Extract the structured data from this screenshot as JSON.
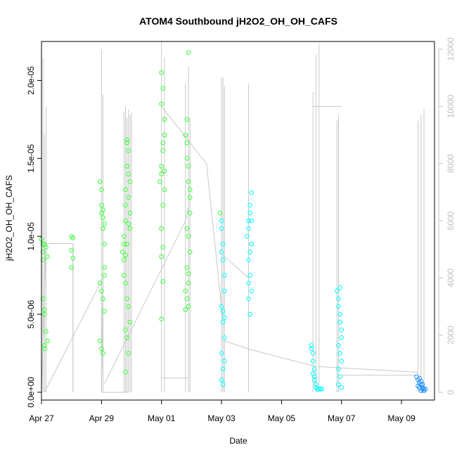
{
  "chart_data": {
    "type": "scatter",
    "title": "ATOM4 Southbound jH2O2_OH_OH_CAFS",
    "xlabel": "Date",
    "ylabel": "jH2O2_OH_OH_CAFS",
    "x_unit": "days",
    "xlim": [
      0.0,
      13.1
    ],
    "ylim": [
      -5e-07,
      2.25e-05
    ],
    "y2lim": [
      -270,
      12270
    ],
    "x_ticks": [
      {
        "value": 0,
        "label": "Apr 27"
      },
      {
        "value": 2,
        "label": "Apr 29"
      },
      {
        "value": 4,
        "label": "May 01"
      },
      {
        "value": 6,
        "label": "May 03"
      },
      {
        "value": 8,
        "label": "May 05"
      },
      {
        "value": 10,
        "label": "May 07"
      },
      {
        "value": 12,
        "label": "May 09"
      }
    ],
    "y_ticks": [
      {
        "value": 0,
        "label": "0.0e+00"
      },
      {
        "value": 5e-06,
        "label": "5.0e-06"
      },
      {
        "value": 1e-05,
        "label": "1.0e-05"
      },
      {
        "value": 1.5e-05,
        "label": "1.5e-05"
      },
      {
        "value": 2e-05,
        "label": "2.0e-05"
      }
    ],
    "y2_ticks": [
      {
        "value": 0,
        "label": "0"
      },
      {
        "value": 2000,
        "label": "2000"
      },
      {
        "value": 4000,
        "label": "4000"
      },
      {
        "value": 6000,
        "label": "6000"
      },
      {
        "value": 8000,
        "label": "8000"
      },
      {
        "value": 10000,
        "label": "10000"
      },
      {
        "value": 12000,
        "label": "12000"
      }
    ],
    "grid": false,
    "legend": "none",
    "colors": {
      "marker_green": "#33ff33",
      "marker_cyan": "#00ffff",
      "marker_blue": "#1e90ff",
      "altitude_line": "#c8c8c8"
    },
    "series": [
      {
        "values_x": [
          0.0,
          0.05,
          0.05,
          0.05,
          0.05,
          0.1,
          0.1,
          0.1,
          0.1,
          0.1,
          0.15,
          0.15,
          0.2,
          0.2,
          1.0,
          1.0,
          1.05,
          1.05,
          1.0
        ],
        "values_y": [
          9.8e-06,
          9.5e-06,
          9e-06,
          8.5e-06,
          6e-06,
          5.3e-06,
          5e-06,
          3e-06,
          2.8e-06,
          9.5e-06,
          9.3e-06,
          3.9e-06,
          8.7e-06,
          3.3e-06,
          1e-05,
          9.1e-06,
          9.9e-06,
          8.6e-06,
          8e-06
        ]
      },
      {
        "values_x": [
          1.95,
          2.0,
          2.0,
          2.0,
          2.05,
          2.05,
          2.1,
          2.1,
          2.1,
          1.95,
          2.0,
          2.05,
          2.1,
          1.95,
          2.0,
          2.05,
          2.05,
          2.1
        ],
        "values_y": [
          1.35e-05,
          1.3e-05,
          1.2e-05,
          1.15e-05,
          1.12e-05,
          1.05e-05,
          9.5e-06,
          8e-06,
          7.5e-06,
          7e-06,
          6.5e-06,
          6e-06,
          5.2e-06,
          3.3e-06,
          2.8e-06,
          2.5e-06,
          1.17e-05,
          1.08e-05
        ]
      },
      {
        "values_x": [
          2.7,
          2.75,
          2.75,
          2.8,
          2.8,
          2.8,
          2.85,
          2.85,
          2.9,
          2.9,
          2.9,
          2.95,
          2.95,
          2.75,
          2.8,
          2.85,
          2.9,
          2.95,
          2.8,
          2.85,
          2.9,
          2.8,
          2.85,
          2.9,
          2.95,
          2.75,
          2.8,
          2.85
        ],
        "values_y": [
          9e-06,
          9.5e-06,
          1e-05,
          1.1e-05,
          1.2e-05,
          1.3e-05,
          1.45e-05,
          1.6e-05,
          1.55e-05,
          1.4e-05,
          1.25e-05,
          1.15e-05,
          1.05e-05,
          7.5e-06,
          7e-06,
          6e-06,
          5.5e-06,
          4.5e-06,
          4e-06,
          3.5e-06,
          2.5e-06,
          1.3e-06,
          9.5e-06,
          1.08e-05,
          1.35e-05,
          8.5e-06,
          8.8e-06,
          1.62e-05
        ]
      },
      {
        "values_x": [
          3.95,
          4.0,
          4.0,
          4.05,
          4.05,
          4.1,
          4.1,
          4.0,
          4.0,
          4.05,
          4.1,
          4.0,
          4.05,
          4.0,
          4.05,
          4.0,
          4.05,
          4.1
        ],
        "values_y": [
          1.35e-05,
          1.4e-05,
          1.45e-05,
          1.55e-05,
          1.6e-05,
          1.65e-05,
          1.75e-05,
          1.85e-05,
          2.05e-05,
          1.95e-05,
          1.3e-05,
          1.05e-05,
          9.3e-06,
          8.7e-06,
          7.1e-06,
          4.7e-06,
          1.2e-05,
          1.42e-05
        ]
      },
      {
        "values_x": [
          4.8,
          4.85,
          4.85,
          4.9,
          4.9,
          4.95,
          4.95,
          4.85,
          4.9,
          4.95,
          4.85,
          4.9,
          4.8,
          4.85,
          4.9,
          4.8,
          4.85,
          4.9,
          4.95,
          4.9
        ],
        "values_y": [
          1.65e-05,
          1.6e-05,
          1.5e-05,
          1.45e-05,
          1.35e-05,
          1.25e-05,
          1.15e-05,
          1.05e-05,
          1e-05,
          9e-06,
          8e-06,
          7e-06,
          6.5e-06,
          6e-06,
          5.5e-06,
          5.3e-06,
          1.75e-05,
          2.18e-05,
          1.3e-05,
          7.6e-06
        ]
      },
      {
        "values_x": [
          5.95,
          6.0,
          6.0,
          6.05,
          6.05,
          6.1,
          6.1,
          6.0,
          6.05,
          6.1,
          6.0,
          6.05,
          6.0,
          6.05,
          6.1,
          6.0,
          6.05,
          6.1
        ],
        "values_y": [
          1.15e-05,
          1.1e-05,
          1.05e-05,
          9.5e-06,
          8.5e-06,
          7.5e-06,
          6.5e-06,
          5.5e-06,
          4.5e-06,
          3.5e-06,
          2.5e-06,
          1.5e-06,
          8e-07,
          5e-07,
          2e-06,
          9e-06,
          5.2e-06,
          4.8e-06
        ]
      },
      {
        "values_x": [
          6.85,
          6.9,
          6.9,
          6.95,
          6.95,
          7.0,
          7.0,
          6.9,
          6.95,
          7.0,
          6.9,
          6.95,
          7.0,
          6.95,
          6.9
        ],
        "values_y": [
          1e-05,
          1.05e-05,
          1.1e-05,
          1.15e-05,
          1.2e-05,
          1.1e-05,
          9.5e-06,
          8.5e-06,
          7.5e-06,
          6.5e-06,
          6e-06,
          5e-06,
          1.28e-05,
          9e-06,
          7e-06
        ]
      },
      {
        "values_x": [
          9.0,
          9.05,
          9.05,
          9.1,
          9.1,
          9.15,
          9.2,
          9.25,
          9.3,
          9.35,
          9.1,
          9.05,
          9.0,
          9.15
        ],
        "values_y": [
          3e-06,
          2.5e-06,
          2e-06,
          1.5e-06,
          1e-06,
          5e-07,
          2e-07,
          2e-07,
          2e-07,
          2e-07,
          8e-07,
          1.2e-06,
          2.8e-06,
          3e-07
        ]
      },
      {
        "values_x": [
          9.85,
          9.9,
          9.9,
          9.95,
          9.95,
          10.0,
          10.0,
          9.9,
          9.95,
          10.0,
          9.9,
          9.95,
          9.9,
          9.95,
          10.0
        ],
        "values_y": [
          6.5e-06,
          6e-06,
          5.5e-06,
          5e-06,
          4.5e-06,
          4e-06,
          3.5e-06,
          3e-06,
          2.5e-06,
          2e-06,
          1.5e-06,
          1e-06,
          5e-07,
          6.7e-06,
          3e-07
        ]
      },
      {
        "values_x": [
          12.5,
          12.55,
          12.6,
          12.65,
          12.7,
          12.75,
          12.8,
          12.55,
          12.6,
          12.65,
          12.7,
          12.6,
          12.65,
          12.7,
          12.75
        ],
        "values_y": [
          1e-06,
          8e-07,
          6e-07,
          5e-07,
          3e-07,
          2e-07,
          2e-07,
          4e-07,
          9e-07,
          7e-07,
          2e-07,
          3e-07,
          1e-07,
          5e-07,
          1e-07
        ]
      }
    ],
    "altitude": {
      "spikes": [
        {
          "x": 0.05,
          "alt": 11700
        },
        {
          "x": 0.1,
          "alt": 9000
        },
        {
          "x": 0.15,
          "alt": 10000
        },
        {
          "x": 1.05,
          "alt": 5200
        },
        {
          "x": 2.0,
          "alt": 12000
        },
        {
          "x": 2.05,
          "alt": 10400
        },
        {
          "x": 2.75,
          "alt": 9800
        },
        {
          "x": 2.8,
          "alt": 10000
        },
        {
          "x": 2.85,
          "alt": 9600
        },
        {
          "x": 2.9,
          "alt": 9900
        },
        {
          "x": 2.95,
          "alt": 9700
        },
        {
          "x": 3.0,
          "alt": 9800
        },
        {
          "x": 4.0,
          "alt": 12300
        },
        {
          "x": 4.1,
          "alt": 11700
        },
        {
          "x": 4.8,
          "alt": 10800
        },
        {
          "x": 4.9,
          "alt": 11400
        },
        {
          "x": 4.95,
          "alt": 9600
        },
        {
          "x": 6.0,
          "alt": 11000
        },
        {
          "x": 6.05,
          "alt": 11000
        },
        {
          "x": 6.1,
          "alt": 10700
        },
        {
          "x": 6.9,
          "alt": 10800
        },
        {
          "x": 9.05,
          "alt": 10500
        },
        {
          "x": 9.15,
          "alt": 11800
        },
        {
          "x": 9.25,
          "alt": 12200
        },
        {
          "x": 9.85,
          "alt": 9500
        },
        {
          "x": 9.9,
          "alt": 9700
        },
        {
          "x": 12.55,
          "alt": 9500
        },
        {
          "x": 12.65,
          "alt": 9700
        },
        {
          "x": 12.75,
          "alt": 9900
        }
      ],
      "transits": [
        {
          "x": [
            0.0,
            0.15,
            1.05,
            1.05
          ],
          "alt": [
            0,
            5200,
            5200,
            0
          ]
        },
        {
          "x": [
            0.1,
            2.05,
            2.0
          ],
          "alt": [
            0,
            4000,
            0
          ]
        },
        {
          "x": [
            2.0,
            2.9
          ],
          "alt": [
            0,
            0
          ]
        },
        {
          "x": [
            2.1,
            4.8,
            4.9
          ],
          "alt": [
            300,
            6000,
            6500
          ]
        },
        {
          "x": [
            4.0,
            4.9
          ],
          "alt": [
            500,
            500
          ]
        },
        {
          "x": [
            4.0,
            5.5,
            6.05
          ],
          "alt": [
            10000,
            8000,
            2500
          ]
        },
        {
          "x": [
            6.05,
            6.9
          ],
          "alt": [
            4800,
            4000
          ]
        },
        {
          "x": [
            6.1,
            6.95
          ],
          "alt": [
            1800,
            1500
          ]
        },
        {
          "x": [
            6.95,
            9.15
          ],
          "alt": [
            1500,
            900
          ]
        },
        {
          "x": [
            9.05,
            10.0
          ],
          "alt": [
            10000,
            10000
          ]
        },
        {
          "x": [
            9.25,
            12.55
          ],
          "alt": [
            900,
            700
          ]
        },
        {
          "x": [
            10.0,
            12.5
          ],
          "alt": [
            600,
            600
          ]
        }
      ]
    }
  }
}
